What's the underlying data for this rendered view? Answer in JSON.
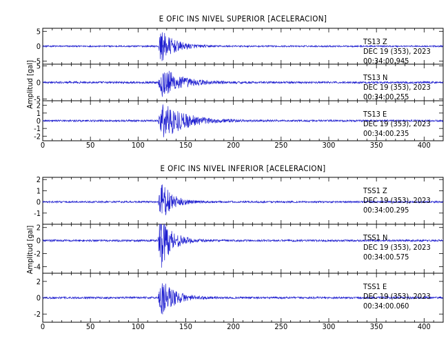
{
  "chart_data": [
    {
      "type": "line",
      "title": "E OFIC INS NIVEL SUPERIOR [ACELERACION]",
      "ylabel": "Amplitud  [gal]",
      "xlim": [
        0,
        420
      ],
      "x_ticks": [
        0,
        50,
        100,
        150,
        200,
        250,
        300,
        350,
        400
      ],
      "color": "#1f1fd0",
      "traces": [
        {
          "station": "TS13",
          "component": "Z",
          "date": "DEC 19 (353), 2023",
          "time": "00:34:00.945",
          "ylim": [
            -6,
            6
          ],
          "y_ticks": [
            -5,
            0,
            5
          ],
          "event_onset": 121,
          "peak_time": 124,
          "peak_amplitude": 5.5,
          "noise": 0.25,
          "decay": 14
        },
        {
          "station": "TS13",
          "component": "N",
          "date": "DEC 19 (353), 2023",
          "time": "00:34:00.255",
          "ylim": [
            -5.5,
            5.5
          ],
          "y_ticks": [
            -5,
            0,
            5
          ],
          "event_onset": 121,
          "peak_time": 125,
          "peak_amplitude": 5.2,
          "noise": 0.3,
          "decay": 18
        },
        {
          "station": "TS13",
          "component": "E",
          "date": "DEC 19 (353), 2023",
          "time": "00:34:00.235",
          "ylim": [
            -2.6,
            2.6
          ],
          "y_ticks": [
            -2,
            -1,
            0,
            1,
            2
          ],
          "event_onset": 121,
          "peak_time": 126,
          "peak_amplitude": 2.5,
          "noise": 0.12,
          "decay": 22
        }
      ]
    },
    {
      "type": "line",
      "title": "E OFIC INS NIVEL INFERIOR [ACELERACION]",
      "ylabel": "Amplitud  [gal]",
      "xlim": [
        0,
        420
      ],
      "x_ticks": [
        0,
        50,
        100,
        150,
        200,
        250,
        300,
        350,
        400
      ],
      "color": "#1f1fd0",
      "traces": [
        {
          "station": "TSS1",
          "component": "Z",
          "date": "DEC 19 (353), 2023",
          "time": "00:34:00.295",
          "ylim": [
            -2,
            2.2
          ],
          "y_ticks": [
            -1,
            0,
            1,
            2
          ],
          "event_onset": 121,
          "peak_time": 123,
          "peak_amplitude": 2.1,
          "noise": 0.08,
          "decay": 11
        },
        {
          "station": "TSS1",
          "component": "N",
          "date": "DEC 19 (353), 2023",
          "time": "00:34:00.575",
          "ylim": [
            -5,
            2.5
          ],
          "y_ticks": [
            -4,
            -2,
            0,
            2
          ],
          "event_onset": 121,
          "peak_time": 123,
          "peak_amplitude": 4.8,
          "noise": 0.15,
          "decay": 11
        },
        {
          "station": "TSS1",
          "component": "E",
          "date": "DEC 19 (353), 2023",
          "time": "00:34:00.060",
          "ylim": [
            -3,
            3
          ],
          "y_ticks": [
            -2,
            0,
            2
          ],
          "event_onset": 121,
          "peak_time": 124,
          "peak_amplitude": 2.8,
          "noise": 0.12,
          "decay": 12
        }
      ]
    }
  ]
}
